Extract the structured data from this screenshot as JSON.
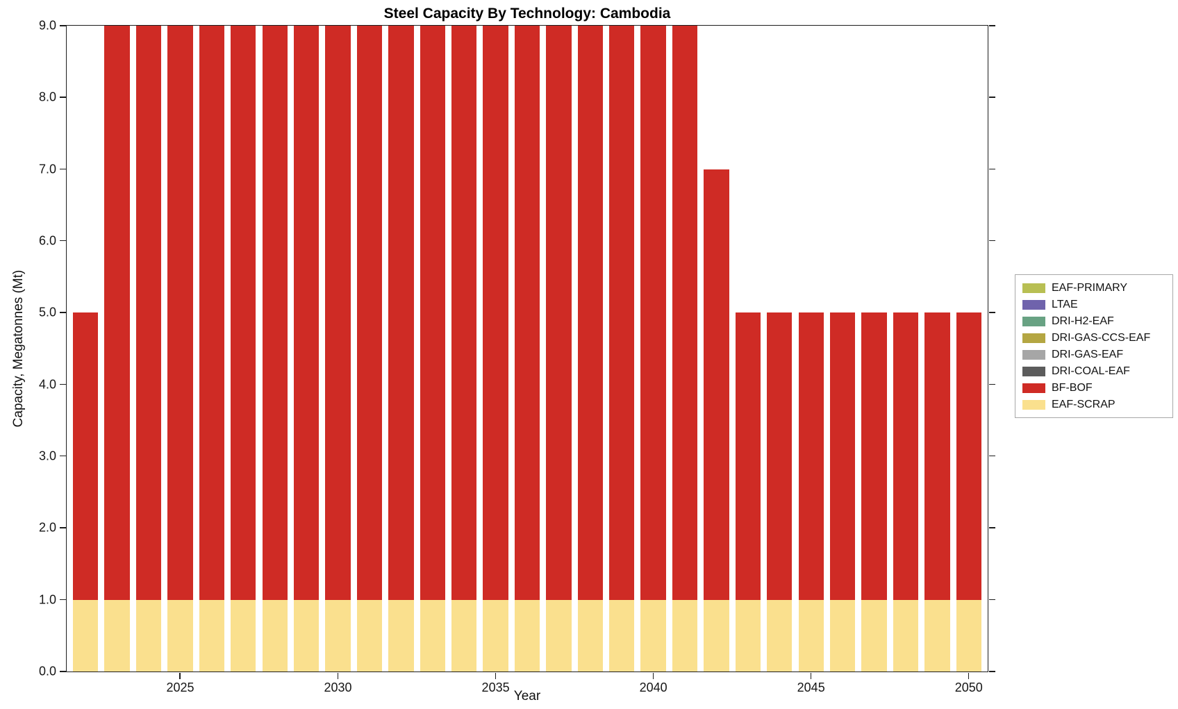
{
  "chart_data": {
    "type": "bar",
    "stacked": true,
    "title": "Steel Capacity By Technology: Cambodia",
    "xlabel": "Year",
    "ylabel": "Capacity, Megatonnes (Mt)",
    "xlim": [
      2021.4,
      2050.6
    ],
    "ylim": [
      0,
      9
    ],
    "grid": false,
    "legend_position": "right-outside",
    "x_ticks": [
      2025,
      2030,
      2035,
      2040,
      2045,
      2050
    ],
    "y_ticks": [
      "0.0",
      "1.0",
      "2.0",
      "3.0",
      "4.0",
      "5.0",
      "6.0",
      "7.0",
      "8.0",
      "9.0"
    ],
    "x": [
      2022,
      2023,
      2024,
      2025,
      2026,
      2027,
      2028,
      2029,
      2030,
      2031,
      2032,
      2033,
      2034,
      2035,
      2036,
      2037,
      2038,
      2039,
      2040,
      2041,
      2042,
      2043,
      2044,
      2045,
      2046,
      2047,
      2048,
      2049,
      2050
    ],
    "series": [
      {
        "name": "EAF-SCRAP",
        "color": "#fae08e",
        "values": [
          1,
          1,
          1,
          1,
          1,
          1,
          1,
          1,
          1,
          1,
          1,
          1,
          1,
          1,
          1,
          1,
          1,
          1,
          1,
          1,
          1,
          1,
          1,
          1,
          1,
          1,
          1,
          1,
          1
        ]
      },
      {
        "name": "BF-BOF",
        "color": "#cf2b25",
        "values": [
          4,
          8,
          8,
          8,
          8,
          8,
          8,
          8,
          8,
          8,
          8,
          8,
          8,
          8,
          8,
          8,
          8,
          8,
          8,
          8,
          6,
          4,
          4,
          4,
          4,
          4,
          4,
          4,
          4
        ]
      }
    ],
    "legend": [
      {
        "label": "EAF-PRIMARY",
        "color": "#b8bf53"
      },
      {
        "label": "LTAE",
        "color": "#6f63ac"
      },
      {
        "label": "DRI-H2-EAF",
        "color": "#68a283"
      },
      {
        "label": "DRI-GAS-CCS-EAF",
        "color": "#b4a642"
      },
      {
        "label": "DRI-GAS-EAF",
        "color": "#a6a6a6"
      },
      {
        "label": "DRI-COAL-EAF",
        "color": "#5c5c5c"
      },
      {
        "label": "BF-BOF",
        "color": "#cf2b25"
      },
      {
        "label": "EAF-SCRAP",
        "color": "#fae08e"
      }
    ]
  }
}
